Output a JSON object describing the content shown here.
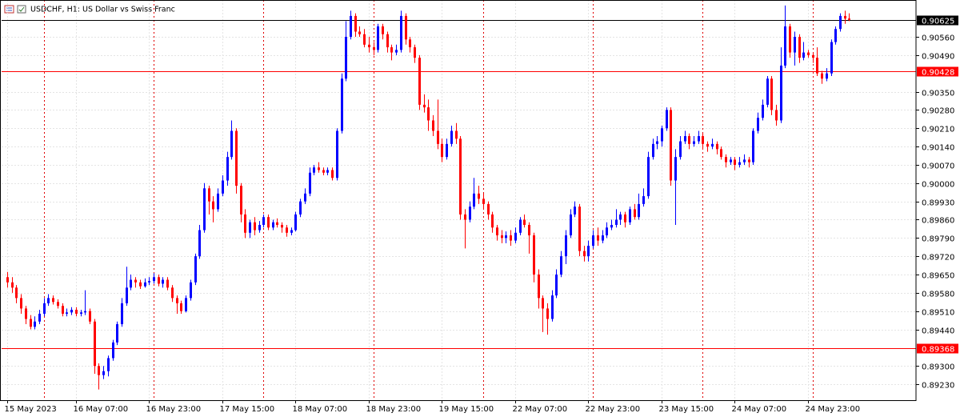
{
  "chart_data": {
    "type": "candlestick",
    "title": "USDCHF, H1:  US Dollar vs Swiss Franc",
    "up_color": "#0000ff",
    "down_color": "#ff0000",
    "grid": true,
    "categories": [
      "15 May 2023",
      null,
      null,
      null,
      null,
      null,
      null,
      null,
      null,
      null,
      null,
      null,
      null,
      null,
      null,
      "16 May 07:00",
      null,
      null,
      null,
      null,
      null,
      null,
      null,
      null,
      null,
      null,
      null,
      null,
      null,
      null,
      null,
      "16 May 23:00",
      null,
      null,
      null,
      null,
      null,
      null,
      null,
      null,
      null,
      null,
      null,
      null,
      null,
      null,
      null,
      "17 May 15:00",
      null,
      null,
      null,
      null,
      null,
      null,
      null,
      null,
      null,
      null,
      null,
      null,
      null,
      null,
      null,
      "18 May 07:00",
      null,
      null,
      null,
      null,
      null,
      null,
      null,
      null,
      null,
      null,
      null,
      null,
      null,
      null,
      null,
      "18 May 23:00",
      null,
      null,
      null,
      null,
      null,
      null,
      null,
      null,
      null,
      null,
      null,
      null,
      null,
      null,
      null,
      "19 May 15:00",
      null,
      null,
      null,
      null,
      null,
      null,
      null,
      null,
      null,
      null,
      null,
      null,
      null,
      null,
      null,
      "22 May 07:00",
      null,
      null,
      null,
      null,
      null,
      null,
      null,
      null,
      null,
      null,
      null,
      null,
      null,
      null,
      null,
      "22 May 23:00",
      null,
      null,
      null,
      null,
      null,
      null,
      null,
      null,
      null,
      null,
      null,
      null,
      null,
      null,
      null,
      "23 May 15:00",
      null,
      null,
      null,
      null,
      null,
      null,
      null,
      null,
      null,
      null,
      null,
      null,
      null,
      null,
      null,
      "24 May 07:00",
      null,
      null,
      null,
      null,
      null,
      null,
      null,
      null,
      null,
      null,
      null,
      null,
      null,
      null,
      null,
      "24 May 23:00",
      null,
      null,
      null,
      null,
      null,
      null,
      null,
      null,
      null
    ],
    "open": [
      0.8964,
      0.8962,
      0.896,
      0.8956,
      0.8952,
      0.8948,
      0.8945,
      0.8947,
      0.895,
      0.8954,
      0.8956,
      0.89545,
      0.8953,
      0.895,
      0.89505,
      0.89515,
      0.895,
      0.89505,
      0.8951,
      0.8947,
      0.893,
      0.89265,
      0.8928,
      0.8933,
      0.8939,
      0.8946,
      0.8954,
      0.896,
      0.8963,
      0.8962,
      0.89605,
      0.8962,
      0.89625,
      0.8964,
      0.89615,
      0.8963,
      0.896,
      0.8956,
      0.8954,
      0.8951,
      0.8956,
      0.8962,
      0.8972,
      0.8982,
      0.8998,
      0.8993,
      0.899,
      0.8996,
      0.9001,
      0.901,
      0.902,
      0.8999,
      0.8988,
      0.8981,
      0.8985,
      0.8982,
      0.8984,
      0.8987,
      0.8983,
      0.8985,
      0.8984,
      0.8983,
      0.8981,
      0.8982,
      0.8988,
      0.8993,
      0.8996,
      0.9004,
      0.9006,
      0.9005,
      0.9004,
      0.9005,
      0.9002,
      0.902,
      0.904,
      0.9056,
      0.9064,
      0.9058,
      0.9057,
      0.9053,
      0.9052,
      0.9051,
      0.906,
      0.9057,
      0.9052,
      0.905,
      0.9051,
      0.9064,
      0.9055,
      0.9052,
      0.9048,
      0.903,
      0.9029,
      0.9024,
      0.902,
      0.9015,
      0.901,
      0.9015,
      0.902,
      0.9017,
      0.8988,
      0.8986,
      0.8991,
      0.8996,
      0.8994,
      0.8992,
      0.8988,
      0.8983,
      0.898,
      0.8979,
      0.898,
      0.8978,
      0.8981,
      0.8986,
      0.8984,
      0.898,
      0.8965,
      0.8956,
      0.8952,
      0.8948,
      0.8957,
      0.8965,
      0.8972,
      0.898,
      0.8988,
      0.8991,
      0.8974,
      0.8972,
      0.8976,
      0.898,
      0.8978,
      0.898,
      0.8983,
      0.8984,
      0.8986,
      0.8988,
      0.8985,
      0.899,
      0.8987,
      0.8992,
      0.8995,
      0.901,
      0.9015,
      0.9016,
      0.9021,
      0.9028,
      0.9001,
      0.901,
      0.9016,
      0.9018,
      0.9015,
      0.9016,
      0.9018,
      0.9015,
      0.9014,
      0.9015,
      0.9013,
      0.901,
      0.9008,
      0.9009,
      0.9007,
      0.9008,
      0.9009,
      0.9008,
      0.902,
      0.9025,
      0.903,
      0.904,
      0.9028,
      0.9024,
      0.9045,
      0.906,
      0.905,
      0.9056,
      0.9048,
      0.905,
      0.9049,
      0.9048,
      0.9042,
      0.904,
      0.9042,
      0.9054,
      0.9059,
      0.9064,
      0.9063
    ],
    "high": [
      0.8966,
      0.8964,
      0.8961,
      0.89575,
      0.8953,
      0.89495,
      0.8949,
      0.89515,
      0.8956,
      0.89575,
      0.8957,
      0.89555,
      0.8954,
      0.8952,
      0.89525,
      0.89525,
      0.89515,
      0.8959,
      0.8952,
      0.8948,
      0.8931,
      0.893,
      0.8934,
      0.894,
      0.8947,
      0.8956,
      0.8968,
      0.8965,
      0.8964,
      0.8963,
      0.89635,
      0.8964,
      0.89655,
      0.8965,
      0.8964,
      0.8964,
      0.8961,
      0.8957,
      0.8955,
      0.8957,
      0.8963,
      0.8973,
      0.8984,
      0.9,
      0.8999,
      0.8995,
      0.8998,
      0.9003,
      0.9012,
      0.9024,
      0.9021,
      0.9,
      0.899,
      0.8986,
      0.8987,
      0.89855,
      0.8988,
      0.8988,
      0.8986,
      0.89865,
      0.8985,
      0.8984,
      0.8983,
      0.8989,
      0.8994,
      0.8998,
      0.9006,
      0.9007,
      0.9008,
      0.9006,
      0.9006,
      0.9006,
      0.9021,
      0.9042,
      0.9062,
      0.9066,
      0.9065,
      0.906,
      0.9059,
      0.9056,
      0.9054,
      0.9061,
      0.9061,
      0.9058,
      0.9053,
      0.9053,
      0.9066,
      0.9065,
      0.9056,
      0.9053,
      0.9049,
      0.9034,
      0.9032,
      0.9026,
      0.9032,
      0.9017,
      0.9017,
      0.9022,
      0.9023,
      0.9018,
      0.899,
      0.8993,
      0.9002,
      0.8999,
      0.8996,
      0.8993,
      0.8989,
      0.8984,
      0.8982,
      0.89815,
      0.8982,
      0.8983,
      0.8987,
      0.8988,
      0.8985,
      0.8981,
      0.8967,
      0.8957,
      0.8954,
      0.8959,
      0.8967,
      0.8974,
      0.8982,
      0.899,
      0.8993,
      0.8992,
      0.8976,
      0.8978,
      0.8982,
      0.8983,
      0.8982,
      0.8985,
      0.8986,
      0.899,
      0.8989,
      0.8989,
      0.8991,
      0.8992,
      0.8996,
      0.8998,
      0.9012,
      0.9017,
      0.9018,
      0.9022,
      0.9029,
      0.9029,
      0.9013,
      0.9018,
      0.902,
      0.9019,
      0.9018,
      0.902,
      0.9019,
      0.9016,
      0.9017,
      0.9016,
      0.9014,
      0.9011,
      0.901,
      0.901,
      0.901,
      0.9011,
      0.901,
      0.9021,
      0.9027,
      0.9032,
      0.9041,
      0.9041,
      0.903,
      0.9052,
      0.9068,
      0.9061,
      0.9058,
      0.9057,
      0.9054,
      0.9051,
      0.905,
      0.9052,
      0.9043,
      0.9044,
      0.9055,
      0.906,
      0.9065,
      0.9066,
      0.9065
    ],
    "low": [
      0.896,
      0.8958,
      0.8954,
      0.895,
      0.8946,
      0.8944,
      0.8944,
      0.8946,
      0.8949,
      0.8953,
      0.89535,
      0.8952,
      0.8949,
      0.8949,
      0.89495,
      0.8949,
      0.8949,
      0.89495,
      0.8946,
      0.8927,
      0.8921,
      0.8925,
      0.8926,
      0.8932,
      0.8938,
      0.8945,
      0.8953,
      0.8959,
      0.896,
      0.89595,
      0.896,
      0.8961,
      0.89615,
      0.89605,
      0.896,
      0.8959,
      0.89545,
      0.895,
      0.895,
      0.89505,
      0.8955,
      0.8961,
      0.8971,
      0.8981,
      0.8988,
      0.8985,
      0.8989,
      0.8995,
      0.8999,
      0.9009,
      0.8996,
      0.8985,
      0.8979,
      0.8979,
      0.898,
      0.8981,
      0.8983,
      0.8982,
      0.8982,
      0.8983,
      0.8981,
      0.89795,
      0.898,
      0.89815,
      0.8987,
      0.8992,
      0.8995,
      0.9003,
      0.9004,
      0.9003,
      0.9003,
      0.9001,
      0.9001,
      0.9019,
      0.9039,
      0.9055,
      0.9056,
      0.9056,
      0.9052,
      0.905,
      0.9049,
      0.905,
      0.9055,
      0.905,
      0.9047,
      0.9049,
      0.905,
      0.9053,
      0.905,
      0.9046,
      0.9028,
      0.9027,
      0.902,
      0.9018,
      0.9013,
      0.9008,
      0.9009,
      0.9014,
      0.9015,
      0.8986,
      0.8975,
      0.8985,
      0.899,
      0.8992,
      0.899,
      0.8986,
      0.8981,
      0.8978,
      0.8977,
      0.8977,
      0.8976,
      0.8977,
      0.898,
      0.8983,
      0.8973,
      0.8962,
      0.8952,
      0.8943,
      0.8942,
      0.8947,
      0.8956,
      0.8964,
      0.8969,
      0.8979,
      0.8987,
      0.8972,
      0.897,
      0.897,
      0.8975,
      0.8976,
      0.8977,
      0.8979,
      0.8982,
      0.8983,
      0.8984,
      0.8983,
      0.8984,
      0.8986,
      0.8986,
      0.8991,
      0.8994,
      0.9009,
      0.9013,
      0.9014,
      0.902,
      0.8999,
      0.8984,
      0.9009,
      0.9015,
      0.9013,
      0.9014,
      0.9015,
      0.9013,
      0.9012,
      0.9013,
      0.9011,
      0.9009,
      0.9006,
      0.9007,
      0.9005,
      0.9006,
      0.9007,
      0.9006,
      0.9007,
      0.9019,
      0.9024,
      0.9029,
      0.9026,
      0.9022,
      0.9023,
      0.9044,
      0.9048,
      0.9045,
      0.9046,
      0.9047,
      0.9048,
      0.9046,
      0.9041,
      0.9038,
      0.9039,
      0.9041,
      0.9053,
      0.9058,
      0.9061,
      0.9062
    ],
    "close": [
      0.8962,
      0.896,
      0.8956,
      0.8952,
      0.8948,
      0.8945,
      0.8947,
      0.895,
      0.8954,
      0.8956,
      0.89545,
      0.8953,
      0.895,
      0.89505,
      0.89515,
      0.895,
      0.89505,
      0.8951,
      0.8947,
      0.893,
      0.89265,
      0.8928,
      0.8933,
      0.8939,
      0.8946,
      0.8954,
      0.896,
      0.8963,
      0.8962,
      0.89605,
      0.8962,
      0.89625,
      0.8964,
      0.89615,
      0.8963,
      0.896,
      0.8956,
      0.8954,
      0.8951,
      0.8956,
      0.8962,
      0.8972,
      0.8982,
      0.8998,
      0.8993,
      0.899,
      0.8996,
      0.9001,
      0.901,
      0.902,
      0.8999,
      0.8988,
      0.8981,
      0.8985,
      0.8982,
      0.8984,
      0.8987,
      0.8983,
      0.8985,
      0.8984,
      0.8983,
      0.8981,
      0.8982,
      0.8988,
      0.8993,
      0.8996,
      0.9004,
      0.9006,
      0.9005,
      0.9004,
      0.9005,
      0.9002,
      0.902,
      0.904,
      0.9056,
      0.9064,
      0.9058,
      0.9057,
      0.9053,
      0.9052,
      0.9051,
      0.906,
      0.9057,
      0.9052,
      0.905,
      0.9051,
      0.9064,
      0.9055,
      0.9052,
      0.9048,
      0.903,
      0.9029,
      0.9024,
      0.902,
      0.9015,
      0.901,
      0.9015,
      0.902,
      0.9017,
      0.8988,
      0.8986,
      0.8991,
      0.8996,
      0.8994,
      0.8992,
      0.8988,
      0.8983,
      0.898,
      0.8979,
      0.898,
      0.8978,
      0.8981,
      0.8986,
      0.8984,
      0.898,
      0.8965,
      0.8956,
      0.8952,
      0.8948,
      0.8957,
      0.8965,
      0.8972,
      0.898,
      0.8988,
      0.8991,
      0.8974,
      0.8972,
      0.8976,
      0.898,
      0.8978,
      0.898,
      0.8983,
      0.8984,
      0.8986,
      0.8988,
      0.8985,
      0.899,
      0.8987,
      0.8992,
      0.8995,
      0.901,
      0.9015,
      0.9016,
      0.9021,
      0.9028,
      0.9001,
      0.901,
      0.9016,
      0.9018,
      0.9015,
      0.9016,
      0.9018,
      0.9015,
      0.9014,
      0.9015,
      0.9013,
      0.901,
      0.9008,
      0.9009,
      0.9007,
      0.9008,
      0.9009,
      0.9008,
      0.902,
      0.9025,
      0.903,
      0.904,
      0.9028,
      0.9024,
      0.9045,
      0.906,
      0.905,
      0.9056,
      0.9048,
      0.905,
      0.9049,
      0.9048,
      0.9042,
      0.904,
      0.9042,
      0.9054,
      0.9059,
      0.9064,
      0.9063,
      0.90625
    ],
    "ylim": [
      0.89169,
      0.90701
    ],
    "yticks": [
      {
        "value": 0.9056,
        "label": "0.90560"
      },
      {
        "value": 0.9049,
        "label": "0.90490"
      },
      {
        "value": 0.9035,
        "label": "0.90350"
      },
      {
        "value": 0.9028,
        "label": "0.90280"
      },
      {
        "value": 0.9021,
        "label": "0.90210"
      },
      {
        "value": 0.9014,
        "label": "0.90140"
      },
      {
        "value": 0.9007,
        "label": "0.90070"
      },
      {
        "value": 0.9,
        "label": "0.90000"
      },
      {
        "value": 0.8993,
        "label": "0.89930"
      },
      {
        "value": 0.8986,
        "label": "0.89860"
      },
      {
        "value": 0.8979,
        "label": "0.89790"
      },
      {
        "value": 0.8972,
        "label": "0.89720"
      },
      {
        "value": 0.8965,
        "label": "0.89650"
      },
      {
        "value": 0.8958,
        "label": "0.89580"
      },
      {
        "value": 0.8951,
        "label": "0.89510"
      },
      {
        "value": 0.8944,
        "label": "0.89440"
      },
      {
        "value": 0.893,
        "label": "0.89300"
      },
      {
        "value": 0.8923,
        "label": "0.89230"
      }
    ],
    "price_lines": [
      {
        "value": 0.90625,
        "color": "#000000"
      },
      {
        "value": 0.90428,
        "color": "#ff0000"
      },
      {
        "value": 0.89368,
        "color": "#ff0000"
      }
    ]
  }
}
